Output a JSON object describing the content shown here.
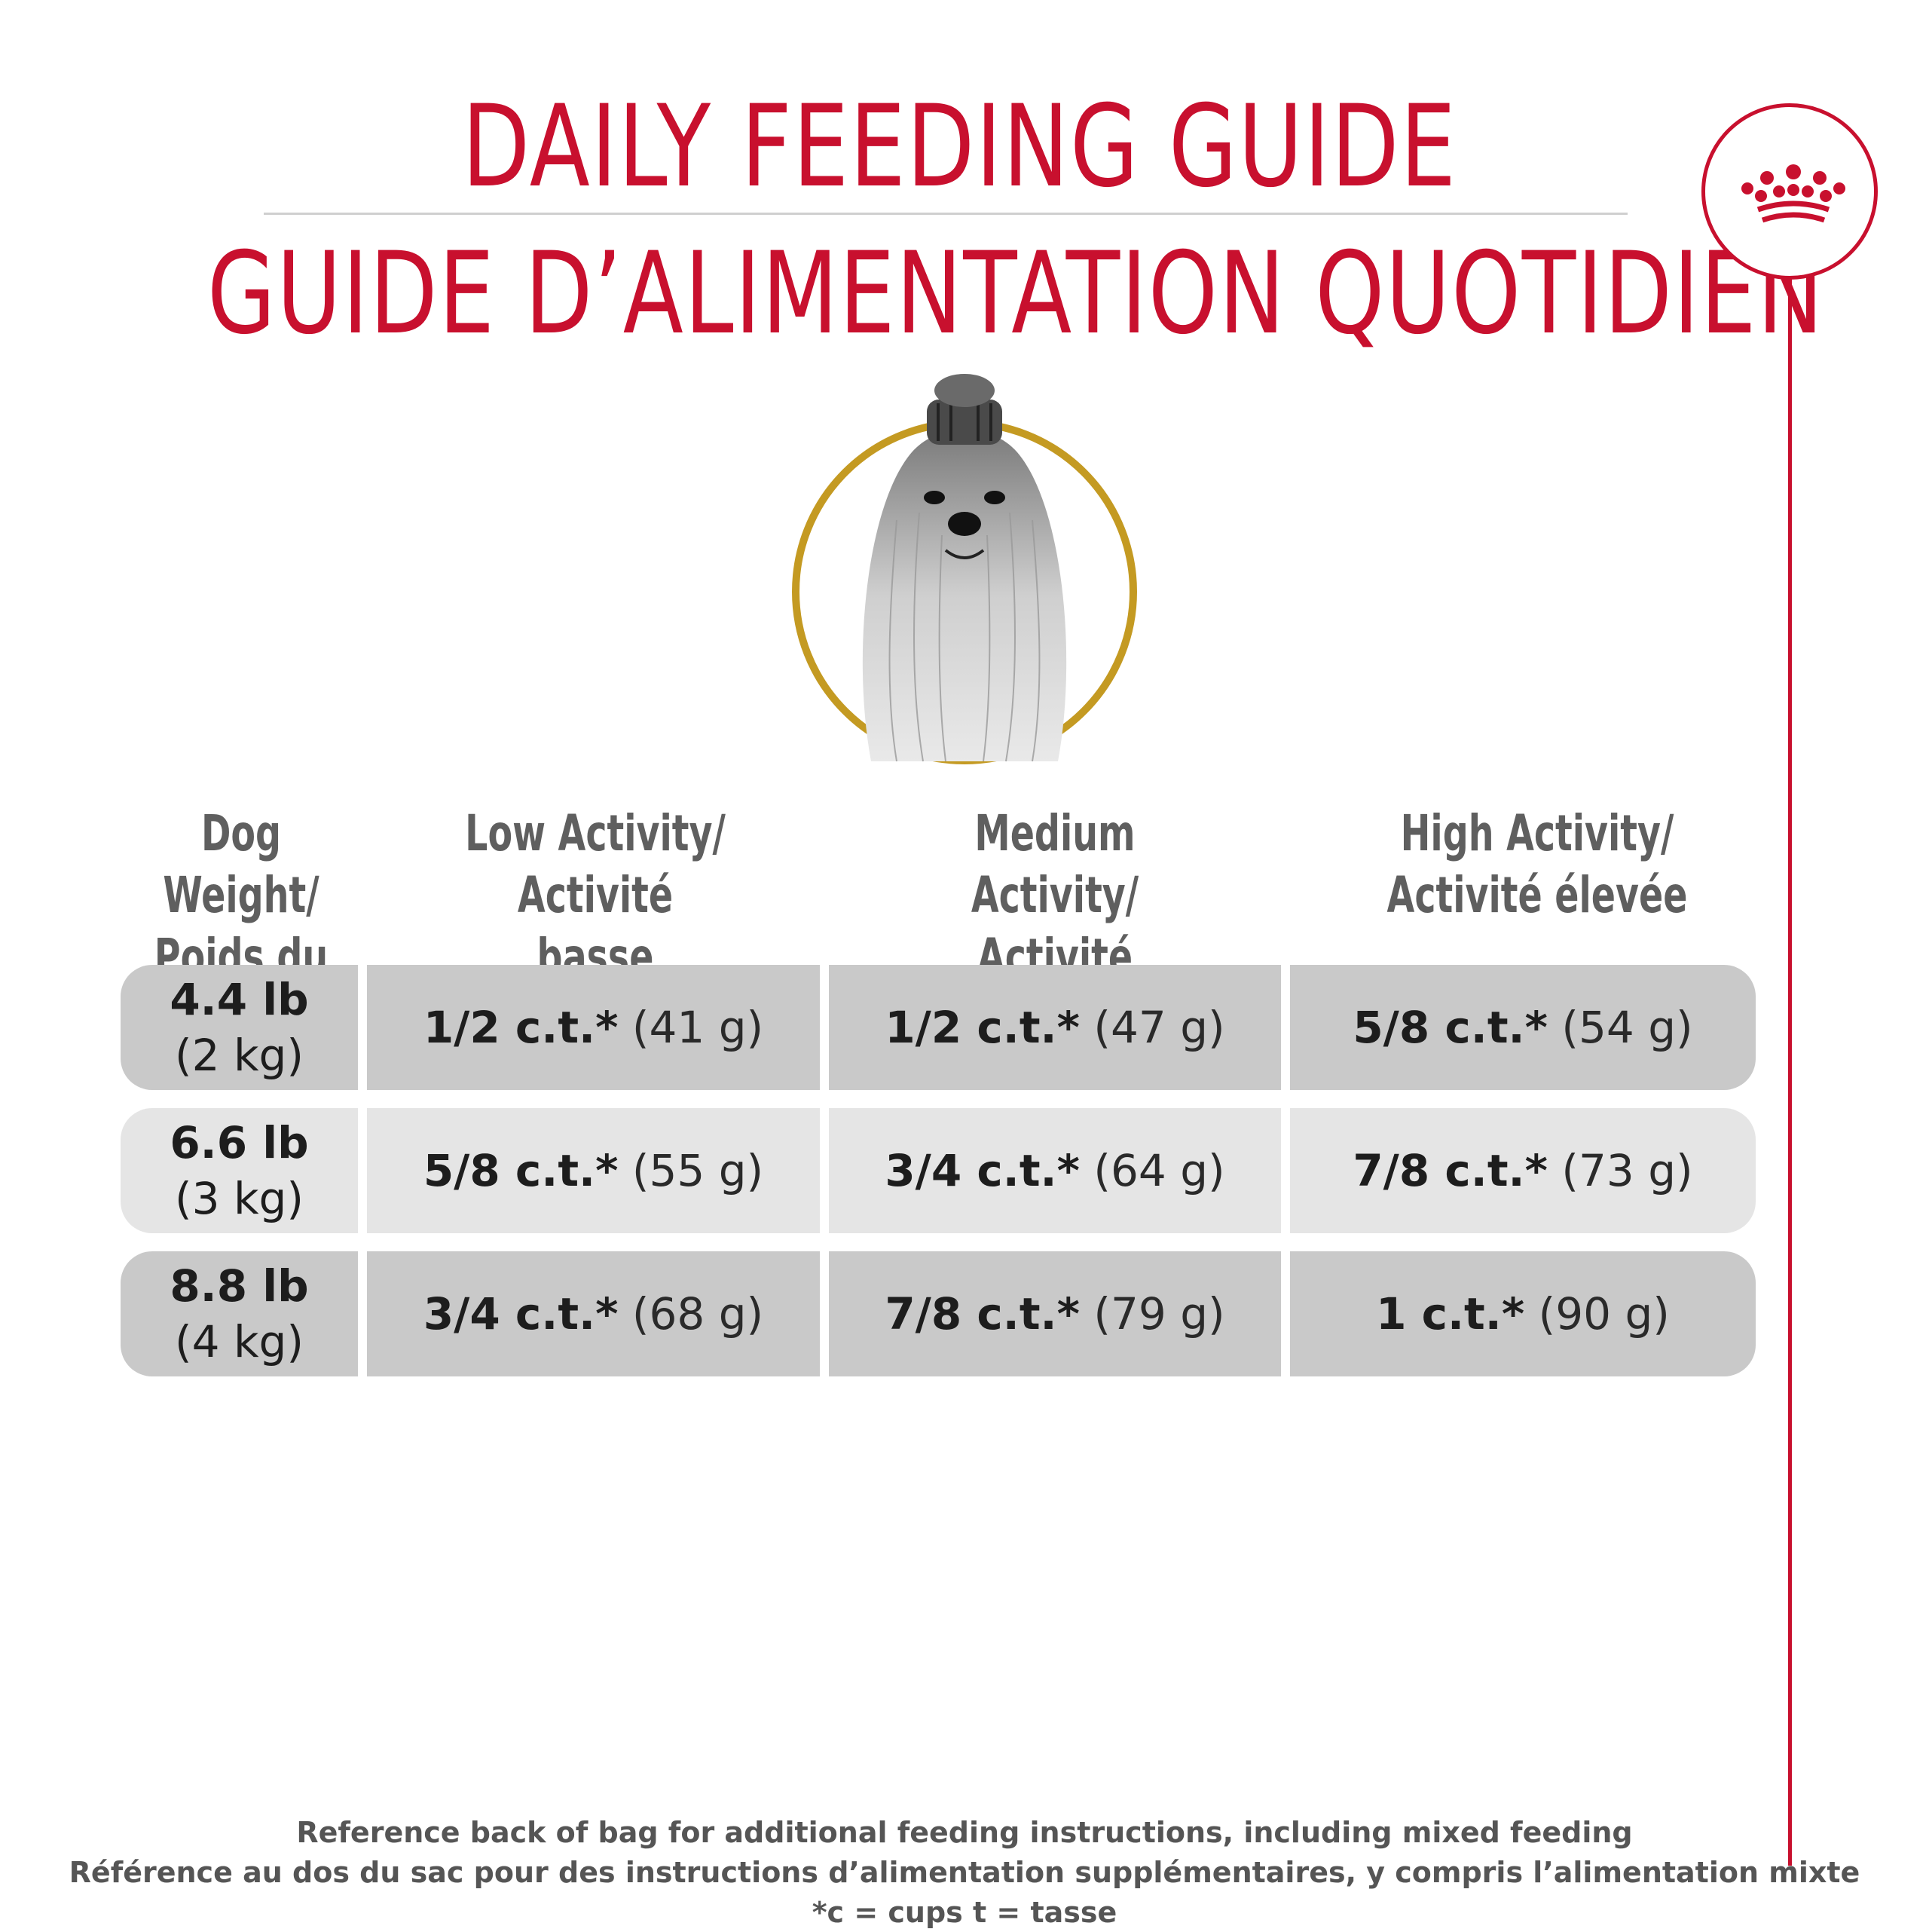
{
  "header": {
    "title_en": "DAILY FEEDING GUIDE",
    "title_fr": "GUIDE D’ALIMENTATION QUOTIDIEN"
  },
  "brand": {
    "logo_icon": "crown-icon",
    "accent_color": "#c8102e"
  },
  "table": {
    "columns": [
      {
        "line1": "Dog Weight/",
        "line2": "Poids du chien"
      },
      {
        "line1": "Low Activity/",
        "line2": "Activité basse"
      },
      {
        "line1": "Medium Activity/",
        "line2": "Activité moyenne"
      },
      {
        "line1": "High Activity/",
        "line2": "Activité élevée"
      }
    ],
    "rows": [
      {
        "weight": "4.4 lb",
        "weight_metric": "(2 kg)",
        "low": {
          "cups": "1/2 c.t.*",
          "grams": "(41 g)"
        },
        "medium": {
          "cups": "1/2 c.t.*",
          "grams": "(47 g)"
        },
        "high": {
          "cups": "5/8 c.t.*",
          "grams": "(54 g)"
        }
      },
      {
        "weight": "6.6 lb",
        "weight_metric": "(3 kg)",
        "low": {
          "cups": "5/8 c.t.*",
          "grams": "(55 g)"
        },
        "medium": {
          "cups": "3/4 c.t.*",
          "grams": "(64 g)"
        },
        "high": {
          "cups": "7/8 c.t.*",
          "grams": "(73 g)"
        }
      },
      {
        "weight": "8.8 lb",
        "weight_metric": "(4 kg)",
        "low": {
          "cups": "3/4 c.t.*",
          "grams": "(68 g)"
        },
        "medium": {
          "cups": "7/8 c.t.*",
          "grams": "(79 g)"
        },
        "high": {
          "cups": "1 c.t.*",
          "grams": "(90 g)"
        }
      }
    ]
  },
  "footer": {
    "line1": "Reference back of bag for additional feeding instructions, including mixed feeding",
    "line2": "Référence au dos du sac pour des instructions d’alimentation supplémentaires, y compris l’alimentation mixte",
    "line3": "*c = cups t = tasse"
  }
}
